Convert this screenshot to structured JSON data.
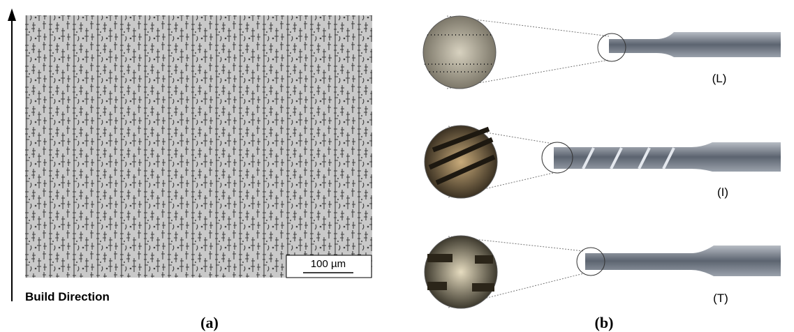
{
  "panel_a": {
    "axis_label": "Build Direction",
    "scale_bar": "100 µm",
    "caption": "(a)"
  },
  "panel_b": {
    "specimens": [
      {
        "label": "(L)"
      },
      {
        "label": "(I)"
      },
      {
        "label": "(T)"
      }
    ],
    "caption": "(b)"
  }
}
